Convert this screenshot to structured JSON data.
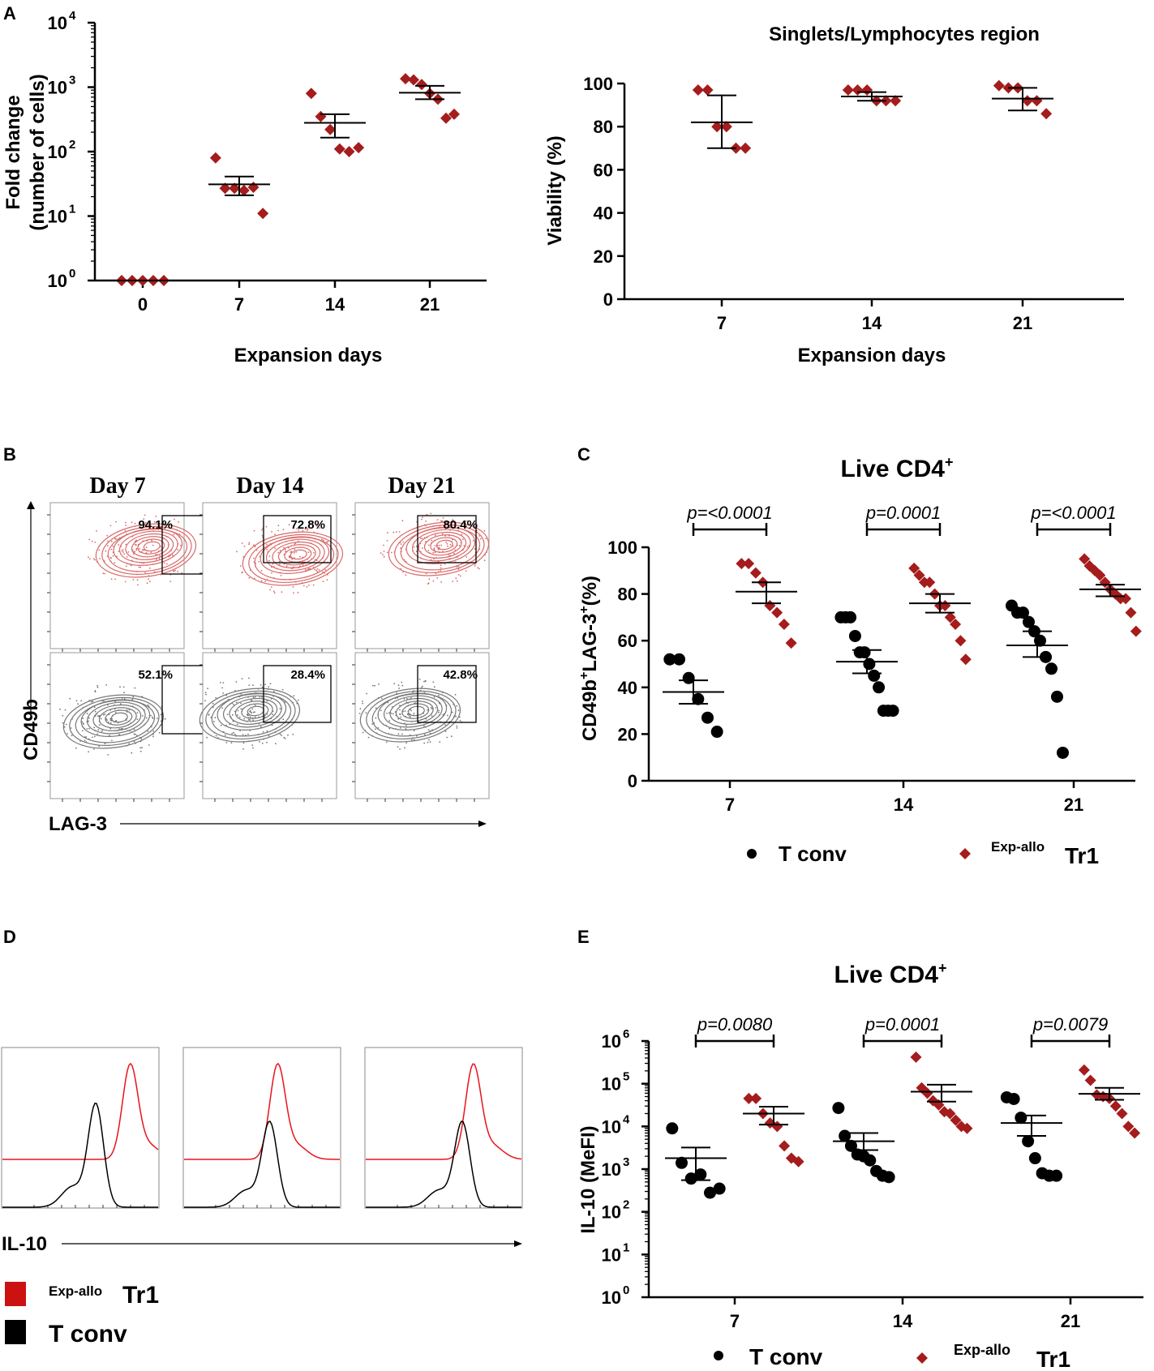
{
  "panels": {
    "A": "A",
    "B": "B",
    "C": "C",
    "D": "D",
    "E": "E"
  },
  "colors": {
    "red": "#a51c1c",
    "black": "#000000",
    "flow_red": "#d96a6a",
    "flow_gray": "#777777",
    "hist_red": "#e8141a"
  },
  "chart_data": [
    {
      "id": "A1",
      "type": "scatter",
      "scale": "log",
      "title": "",
      "xlabel": "Expansion days",
      "ylabel_lines": [
        "Fold change",
        "(number of cells)"
      ],
      "ytick_exponents": [
        "0",
        "1",
        "2",
        "3",
        "4"
      ],
      "categories": [
        "0",
        "7",
        "14",
        "21"
      ],
      "series": [
        {
          "name": "Exp-allo Tr1",
          "marker": "diamond",
          "color": "#a51c1c",
          "groups": [
            {
              "points": [
                1,
                1,
                1,
                1,
                1
              ],
              "mean": 1,
              "sem_low": 1,
              "sem_high": 1
            },
            {
              "points": [
                80,
                27,
                27,
                25,
                28,
                11
              ],
              "mean": 31,
              "sem_low": 21,
              "sem_high": 41
            },
            {
              "points": [
                800,
                350,
                220,
                110,
                100,
                115
              ],
              "mean": 280,
              "sem_low": 165,
              "sem_high": 380
            },
            {
              "points": [
                1350,
                1300,
                1100,
                800,
                650,
                330,
                380
              ],
              "mean": 820,
              "sem_low": 650,
              "sem_high": 1050
            }
          ]
        }
      ],
      "ylim_exp": [
        0,
        4
      ]
    },
    {
      "id": "A2",
      "type": "scatter",
      "scale": "linear",
      "title": "Singlets/Lymphocytes region",
      "xlabel": "Expansion days",
      "ylabel": "Viability (%)",
      "yticks": [
        "0",
        "20",
        "40",
        "60",
        "80",
        "100"
      ],
      "categories": [
        "7",
        "14",
        "21"
      ],
      "series": [
        {
          "name": "Exp-allo Tr1",
          "marker": "diamond",
          "color": "#a51c1c",
          "groups": [
            {
              "points": [
                97,
                97,
                80,
                80,
                70,
                70
              ],
              "mean": 82,
              "sem_low": 70,
              "sem_high": 94.5
            },
            {
              "points": [
                97,
                97,
                97,
                92,
                92,
                92
              ],
              "mean": 94,
              "sem_low": 92,
              "sem_high": 96
            },
            {
              "points": [
                99,
                98,
                98,
                92,
                92,
                86
              ],
              "mean": 93,
              "sem_low": 87.5,
              "sem_high": 98
            }
          ]
        }
      ],
      "ylim": [
        0,
        100
      ]
    },
    {
      "id": "C",
      "type": "scatter",
      "scale": "linear",
      "title": "Live CD4",
      "title_sup": "+",
      "ylabel_parts": [
        "CD49b",
        "+",
        "LAG-3",
        "+",
        "(%)"
      ],
      "yticks": [
        "0",
        "20",
        "40",
        "60",
        "80",
        "100"
      ],
      "categories": [
        "7",
        "14",
        "21"
      ],
      "pvalues": [
        "p=<0.0001",
        "p=0.0001",
        "p=<0.0001"
      ],
      "legend": {
        "tconv": "T conv",
        "tr1_prefix": "Exp-allo",
        "tr1": "Tr1"
      },
      "series": [
        {
          "name": "T conv",
          "marker": "circle",
          "color": "#000000",
          "groups": [
            {
              "points": [
                52,
                52,
                44,
                35,
                27,
                21
              ],
              "mean": 38,
              "sem_low": 33,
              "sem_high": 43
            },
            {
              "points": [
                70,
                70,
                70,
                62,
                55,
                55,
                50,
                45,
                40,
                30,
                30,
                30
              ],
              "mean": 51,
              "sem_low": 46,
              "sem_high": 56
            },
            {
              "points": [
                75,
                72,
                72,
                68,
                64,
                60,
                53,
                48,
                36,
                12
              ],
              "mean": 58,
              "sem_low": 53,
              "sem_high": 64
            }
          ]
        },
        {
          "name": "Exp-allo Tr1",
          "marker": "diamond",
          "color": "#a51c1c",
          "groups": [
            {
              "points": [
                93,
                93,
                89,
                85,
                75,
                72,
                67,
                59
              ],
              "mean": 81,
              "sem_low": 76,
              "sem_high": 85
            },
            {
              "points": [
                91,
                88,
                85,
                85,
                80,
                75,
                75,
                70,
                67,
                60,
                52
              ],
              "mean": 76,
              "sem_low": 72,
              "sem_high": 80
            },
            {
              "points": [
                95,
                92,
                90,
                88,
                85,
                82,
                80,
                78,
                78,
                72,
                64
              ],
              "mean": 82,
              "sem_low": 79,
              "sem_high": 84
            }
          ]
        }
      ],
      "ylim": [
        0,
        100
      ]
    },
    {
      "id": "E",
      "type": "scatter",
      "scale": "log",
      "title": "Live CD4",
      "title_sup": "+",
      "ylabel": "IL-10 (MeFI)",
      "ytick_exponents": [
        "0",
        "1",
        "2",
        "3",
        "4",
        "5",
        "6"
      ],
      "categories": [
        "7",
        "14",
        "21"
      ],
      "pvalues": [
        "p=0.0080",
        "p=0.0001",
        "p=0.0079"
      ],
      "legend": {
        "tconv": "T conv",
        "tr1_prefix": "Exp-allo",
        "tr1": "Tr1"
      },
      "series": [
        {
          "name": "T conv",
          "marker": "circle",
          "color": "#000000",
          "groups": [
            {
              "points": [
                9000,
                1400,
                600,
                750,
                280,
                350
              ],
              "mean": 1800,
              "sem_low": 550,
              "sem_high": 3200
            },
            {
              "points": [
                27000,
                6000,
                3500,
                2200,
                2000,
                1600,
                900,
                700,
                650
              ],
              "mean": 4500,
              "sem_low": 2800,
              "sem_high": 7000
            },
            {
              "points": [
                48000,
                44000,
                16000,
                4500,
                1800,
                800,
                700,
                700
              ],
              "mean": 12000,
              "sem_low": 6000,
              "sem_high": 18000
            }
          ]
        },
        {
          "name": "Exp-allo Tr1",
          "marker": "diamond",
          "color": "#a51c1c",
          "groups": [
            {
              "points": [
                45000,
                45000,
                20000,
                12000,
                10000,
                3500,
                1800,
                1500
              ],
              "mean": 20000,
              "sem_low": 11000,
              "sem_high": 29000
            },
            {
              "points": [
                420000,
                80000,
                60000,
                40000,
                32000,
                22000,
                20000,
                14000,
                10000,
                9000
              ],
              "mean": 65000,
              "sem_low": 38000,
              "sem_high": 95000
            },
            {
              "points": [
                210000,
                120000,
                55000,
                50000,
                45000,
                30000,
                20000,
                10000,
                7000
              ],
              "mean": 58000,
              "sem_low": 42000,
              "sem_high": 80000
            }
          ]
        }
      ],
      "ylim_exp": [
        0,
        6
      ]
    }
  ],
  "flow_B": {
    "days": [
      "Day 7",
      "Day 14",
      "Day 21"
    ],
    "top_percents": [
      "94.1%",
      "72.8%",
      "80.4%"
    ],
    "bottom_percents": [
      "52.1%",
      "28.4%",
      "42.8%"
    ],
    "ylabel": "CD49b",
    "xlabel": "LAG-3"
  },
  "histograms_D": {
    "xlabel": "IL-10",
    "legend": {
      "tr1_prefix": "Exp-allo",
      "tr1": "Tr1",
      "tconv": "T conv"
    }
  }
}
